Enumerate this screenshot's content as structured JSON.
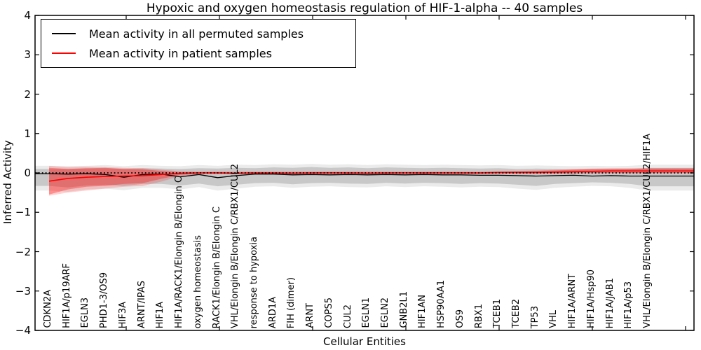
{
  "chart_data": {
    "type": "line",
    "title": "Hypoxic and oxygen homeostasis regulation of HIF-1-alpha -- 40 samples",
    "xlabel": "Cellular Entities",
    "ylabel": "Inferred Activity",
    "ylim": [
      -4,
      4
    ],
    "yticks": [
      4,
      3,
      2,
      1,
      0,
      -1,
      -2,
      -3,
      -4
    ],
    "grid": false,
    "legend_position": "upper left",
    "zero_line": {
      "y": 0,
      "style": "dotted",
      "color": "#000000"
    },
    "categories": [
      "CDKN2A",
      "HIF1A/p19ARF",
      "EGLN3",
      "PHD1-3/OS9",
      "HIF3A",
      "ARNT/IPAS",
      "HIF1A",
      "HIF1A/RACK1/Elongin B/Elongin C",
      "oxygen homeostasis",
      "RACK1/Elongin B/Elongin C",
      "VHL/Elongin B/Elongin C/RBX1/CUL2",
      "response to hypoxia",
      "ARD1A",
      "FIH (dimer)",
      "ARNT",
      "COPS5",
      "CUL2",
      "EGLN1",
      "EGLN2",
      "GNB2L1",
      "HIF1AN",
      "HSP90AA1",
      "OS9",
      "RBX1",
      "TCEB1",
      "TCEB2",
      "TP53",
      "VHL",
      "HIF1A/ARNT",
      "HIF1A/Hsp90",
      "HIF1A/JAB1",
      "HIF1A/p53",
      "VHL/Elongin B/Elongin C/RBX1/CUL2/HIF1A"
    ],
    "series": [
      {
        "name": "Mean activity in all permuted samples",
        "color": "#000000",
        "values": [
          -0.02,
          -0.03,
          -0.02,
          -0.04,
          -0.11,
          -0.04,
          -0.03,
          -0.1,
          -0.04,
          -0.12,
          -0.07,
          -0.03,
          -0.03,
          -0.05,
          -0.04,
          -0.05,
          -0.04,
          -0.05,
          -0.04,
          -0.05,
          -0.04,
          -0.05,
          -0.05,
          -0.06,
          -0.06,
          -0.07,
          -0.08,
          -0.07,
          -0.06,
          -0.08,
          -0.07,
          -0.08,
          -0.08
        ],
        "band_inner": {
          "upper": [
            0.1,
            0.1,
            0.11,
            0.12,
            0.1,
            0.12,
            0.11,
            0.1,
            0.12,
            0.11,
            0.13,
            0.12,
            0.14,
            0.13,
            0.15,
            0.13,
            0.14,
            0.12,
            0.14,
            0.13,
            0.12,
            0.13,
            0.12,
            0.11,
            0.12,
            0.1,
            0.11,
            0.1,
            0.09,
            0.1,
            0.09,
            0.1,
            0.13
          ],
          "lower": [
            -0.33,
            -0.37,
            -0.32,
            -0.3,
            -0.33,
            -0.28,
            -0.28,
            -0.32,
            -0.27,
            -0.34,
            -0.3,
            -0.26,
            -0.25,
            -0.29,
            -0.26,
            -0.25,
            -0.27,
            -0.28,
            -0.25,
            -0.27,
            -0.25,
            -0.26,
            -0.28,
            -0.26,
            -0.27,
            -0.3,
            -0.33,
            -0.28,
            -0.26,
            -0.24,
            -0.25,
            -0.28,
            -0.34
          ]
        },
        "band_outer": {
          "upper": [
            0.18,
            0.17,
            0.18,
            0.2,
            0.17,
            0.2,
            0.18,
            0.17,
            0.2,
            0.18,
            0.21,
            0.2,
            0.22,
            0.21,
            0.23,
            0.21,
            0.22,
            0.2,
            0.22,
            0.21,
            0.2,
            0.21,
            0.2,
            0.19,
            0.2,
            0.18,
            0.19,
            0.18,
            0.17,
            0.18,
            0.17,
            0.18,
            0.21
          ],
          "lower": [
            -0.45,
            -0.48,
            -0.42,
            -0.4,
            -0.44,
            -0.38,
            -0.38,
            -0.42,
            -0.36,
            -0.45,
            -0.4,
            -0.35,
            -0.34,
            -0.38,
            -0.35,
            -0.34,
            -0.36,
            -0.37,
            -0.34,
            -0.36,
            -0.34,
            -0.35,
            -0.37,
            -0.35,
            -0.36,
            -0.4,
            -0.43,
            -0.38,
            -0.35,
            -0.33,
            -0.34,
            -0.38,
            -0.45
          ]
        }
      },
      {
        "name": "Mean activity in patient samples",
        "color": "#ff0000",
        "values": [
          -0.21,
          -0.14,
          -0.11,
          -0.09,
          -0.08,
          -0.07,
          -0.04,
          -0.01,
          0.0,
          0.0,
          -0.01,
          0.0,
          0.0,
          -0.01,
          0.0,
          0.0,
          0.0,
          -0.01,
          0.0,
          0.0,
          0.0,
          0.0,
          0.0,
          0.0,
          0.01,
          0.01,
          0.01,
          0.02,
          0.03,
          0.04,
          0.05,
          0.05,
          0.05
        ],
        "band_inner": {
          "upper": [
            0.13,
            0.1,
            0.12,
            0.13,
            0.1,
            0.09,
            0.05,
            0.02,
            0.02,
            0.02,
            0.02,
            0.02,
            0.02,
            0.02,
            0.02,
            0.02,
            0.02,
            0.02,
            0.02,
            0.02,
            0.02,
            0.02,
            0.02,
            0.02,
            0.03,
            0.04,
            0.05,
            0.06,
            0.08,
            0.09,
            0.1,
            0.1,
            0.11
          ],
          "lower": [
            -0.55,
            -0.42,
            -0.35,
            -0.33,
            -0.28,
            -0.26,
            -0.15,
            -0.05,
            -0.02,
            -0.02,
            -0.02,
            -0.02,
            -0.02,
            -0.02,
            -0.02,
            -0.02,
            -0.02,
            -0.02,
            -0.02,
            -0.02,
            -0.02,
            -0.02,
            -0.02,
            -0.02,
            -0.01,
            -0.01,
            -0.01,
            -0.01,
            -0.01,
            0.0,
            0.0,
            0.0,
            0.0
          ]
        },
        "band_outer": {
          "upper": [
            0.18,
            0.15,
            0.16,
            0.15,
            0.13,
            0.12,
            0.08,
            0.04,
            0.03,
            0.03,
            0.03,
            0.03,
            0.03,
            0.03,
            0.03,
            0.03,
            0.03,
            0.03,
            0.03,
            0.03,
            0.03,
            0.03,
            0.03,
            0.03,
            0.04,
            0.05,
            0.06,
            0.08,
            0.1,
            0.11,
            0.12,
            0.12,
            0.12
          ],
          "lower": [
            -0.58,
            -0.5,
            -0.45,
            -0.4,
            -0.35,
            -0.33,
            -0.22,
            -0.08,
            -0.03,
            -0.03,
            -0.03,
            -0.03,
            -0.03,
            -0.03,
            -0.03,
            -0.03,
            -0.03,
            -0.03,
            -0.03,
            -0.03,
            -0.03,
            -0.03,
            -0.03,
            -0.03,
            -0.02,
            -0.02,
            -0.02,
            -0.02,
            -0.01,
            -0.01,
            -0.01,
            -0.01,
            -0.01
          ]
        }
      }
    ]
  },
  "legend": {
    "entries": [
      {
        "label": "Mean activity in all permuted samples",
        "color": "#000000"
      },
      {
        "label": "Mean activity in patient samples",
        "color": "#ff0000"
      }
    ]
  }
}
